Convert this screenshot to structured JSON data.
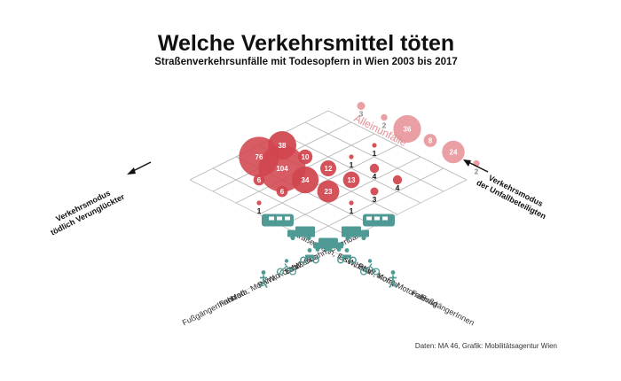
{
  "title": "Welche Verkehrsmittel töten",
  "subtitle": "Straßenverkehrsunfälle mit Todesopfern in Wien 2003 bis 2017",
  "source": "Daten: MA 46, Grafik: Mobilitätsagentur Wien",
  "left_axis_title": [
    "Verkehrsmodus",
    "tödlich Verunglückter"
  ],
  "right_axis_title": [
    "Verkehrsmodus",
    "der Unfallbeteiligten"
  ],
  "single_accidents_label": "Alleinunfälle",
  "colors": {
    "bubble": "#d1464f",
    "bubble_single": "#e58e93",
    "icon": "#4f9a94",
    "grid": "#b5b5b5"
  },
  "chart_data": {
    "type": "bubble-matrix",
    "rows_victim_modes": [
      "Straßenbahn, Eisenbahn",
      "LKW, Bus",
      "PKW, Kombi",
      "Mofa, Motorrad",
      "Fahrrad",
      "FußgängerInnen"
    ],
    "cols_involved_modes": [
      "Straßenbahn, Eisenbahn",
      "LKW, Bus",
      "PKW, Kombi",
      "Mofa, Motorrad",
      "Fahrrad",
      "FußgängerInnen"
    ],
    "cells": [
      {
        "row": 0,
        "col": 2,
        "value": 1
      },
      {
        "row": 1,
        "col": 2,
        "value": 1
      },
      {
        "row": 1,
        "col": 3,
        "value": 4
      },
      {
        "row": 1,
        "col": 4,
        "value": 4
      },
      {
        "row": 2,
        "col": 0,
        "value": 38
      },
      {
        "row": 2,
        "col": 1,
        "value": 10
      },
      {
        "row": 2,
        "col": 2,
        "value": 12
      },
      {
        "row": 2,
        "col": 3,
        "value": 13
      },
      {
        "row": 2,
        "col": 4,
        "value": 3
      },
      {
        "row": 3,
        "col": 0,
        "value": 76
      },
      {
        "row": 3,
        "col": 1,
        "value": 104
      },
      {
        "row": 3,
        "col": 2,
        "value": 34
      },
      {
        "row": 3,
        "col": 3,
        "value": 23
      },
      {
        "row": 3,
        "col": 4,
        "value": 1
      },
      {
        "row": 4,
        "col": 1,
        "value": 6
      },
      {
        "row": 4,
        "col": 2,
        "value": 6
      },
      {
        "row": 5,
        "col": 2,
        "value": 1
      }
    ],
    "single_accidents": [
      {
        "mode": "Mofa, Motorrad",
        "value": 8
      },
      {
        "mode": "PKW, Kombi",
        "value": 36
      },
      {
        "mode": "Fahrrad",
        "value": 24
      },
      {
        "mode": "LKW, Bus",
        "value": 2
      },
      {
        "mode": "Straßenbahn, Eisenbahn",
        "value": 3
      },
      {
        "mode": "FußgängerInnen",
        "value": 2
      }
    ]
  }
}
